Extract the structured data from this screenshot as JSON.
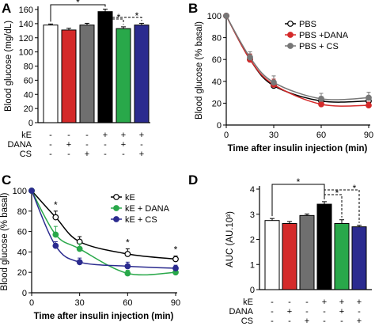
{
  "chart_data": [
    {
      "panel": "A",
      "type": "bar",
      "ylabel": "Blood glucose (mg/dL)",
      "ylim": [
        0,
        160
      ],
      "yticks": [
        0,
        20,
        40,
        60,
        80,
        100,
        120,
        140,
        160
      ],
      "tick_labels": [
        "0",
        "20",
        "40",
        "60",
        "80",
        "100",
        "120",
        "140",
        "160"
      ],
      "series": [
        {
          "name": "",
          "values": [
            138,
            131,
            138,
            157,
            133,
            138
          ],
          "errors": [
            1.5,
            2.5,
            2.5,
            3.5,
            2.5,
            2.5
          ]
        }
      ],
      "bar_colors": [
        "#ffffff",
        "#d42a2a",
        "#6f6f6f",
        "#000000",
        "#29a84a",
        "#2b2b8f"
      ],
      "condition_rows": [
        {
          "label": "kE",
          "marks": [
            "-",
            "-",
            "-",
            "+",
            "+",
            "+"
          ]
        },
        {
          "label": "DANA",
          "marks": [
            "-",
            "+",
            "-",
            "-",
            "+",
            "-"
          ]
        },
        {
          "label": "CS",
          "marks": [
            "-",
            "-",
            "+",
            "-",
            "-",
            "+"
          ]
        }
      ],
      "significance": [
        {
          "from": 0,
          "to": 3,
          "label": "*"
        },
        {
          "from": 3,
          "to": 4,
          "label": "*"
        },
        {
          "from": 3,
          "to": 5,
          "label": "*"
        }
      ]
    },
    {
      "panel": "B",
      "type": "line",
      "xlabel": "Time after insulin injection (min)",
      "ylabel": "Blood glucose (% basal)",
      "x": [
        0,
        15,
        30,
        60,
        90
      ],
      "xlim": [
        0,
        90
      ],
      "ylim": [
        0,
        100
      ],
      "xticks": [
        0,
        30,
        60,
        90
      ],
      "yticks": [
        0,
        20,
        40,
        60,
        80,
        100
      ],
      "xtick_labels": [
        "0",
        "30",
        "60",
        "90"
      ],
      "ytick_labels": [
        "0",
        "20",
        "40",
        "60",
        "80",
        "100"
      ],
      "legend": "top-right",
      "series": [
        {
          "name": "PBS",
          "color": "#000000",
          "values": [
            100,
            60,
            36,
            22,
            22
          ],
          "errors": [
            0,
            5,
            6,
            4,
            4
          ]
        },
        {
          "name": "PBS +DANA",
          "color": "#d42a2a",
          "values": [
            100,
            60,
            37,
            19,
            18
          ],
          "errors": [
            0,
            5,
            5,
            3,
            3
          ]
        },
        {
          "name": "PBS + CS",
          "color": "#777777",
          "values": [
            100,
            62,
            39,
            24,
            25
          ],
          "errors": [
            0,
            5,
            6,
            5,
            5
          ]
        }
      ]
    },
    {
      "panel": "C",
      "type": "line",
      "xlabel": "Time after insulin injection (min)",
      "ylabel": "Blood glucose (% basal)",
      "x": [
        0,
        15,
        30,
        60,
        90
      ],
      "xlim": [
        0,
        90
      ],
      "ylim": [
        0,
        100
      ],
      "xticks": [
        0,
        30,
        60,
        90
      ],
      "yticks": [
        0,
        20,
        40,
        60,
        80,
        100
      ],
      "xtick_labels": [
        "0",
        "30",
        "60",
        "90"
      ],
      "ytick_labels": [
        "0",
        "20",
        "40",
        "60",
        "80",
        "100"
      ],
      "legend": "top-right",
      "series": [
        {
          "name": "kE",
          "color": "#000000",
          "values": [
            100,
            74,
            50,
            38,
            33
          ],
          "errors": [
            0,
            6,
            5,
            5,
            3
          ]
        },
        {
          "name": "kE + DANA",
          "color": "#29a84a",
          "values": [
            100,
            57,
            43,
            19,
            20
          ],
          "errors": [
            0,
            8,
            5,
            3,
            3
          ]
        },
        {
          "name": "kE + CS",
          "color": "#2b2b8f",
          "values": [
            100,
            46,
            30,
            26,
            24
          ],
          "errors": [
            0,
            4,
            4,
            4,
            3
          ]
        }
      ],
      "annotations": [
        {
          "x": 15,
          "label": "*"
        },
        {
          "x": 60,
          "label": "*"
        },
        {
          "x": 90,
          "label": "*"
        }
      ]
    },
    {
      "panel": "D",
      "type": "bar",
      "ylabel": "AUC (AU.10³)",
      "ylim": [
        0,
        4
      ],
      "yticks": [
        0,
        1,
        2,
        3,
        4
      ],
      "tick_labels": [
        "0",
        "1",
        "2",
        "3",
        "4"
      ],
      "series": [
        {
          "name": "",
          "values": [
            2.75,
            2.63,
            2.95,
            3.4,
            2.63,
            2.5
          ],
          "errors": [
            0.08,
            0.08,
            0.06,
            0.1,
            0.15,
            0.06
          ]
        }
      ],
      "bar_colors": [
        "#ffffff",
        "#d42a2a",
        "#6f6f6f",
        "#000000",
        "#29a84a",
        "#2b2b8f"
      ],
      "condition_rows": [
        {
          "label": "kE",
          "marks": [
            "-",
            "-",
            "-",
            "+",
            "+",
            "+"
          ]
        },
        {
          "label": "DANA",
          "marks": [
            "-",
            "+",
            "-",
            "-",
            "+",
            "-"
          ]
        },
        {
          "label": "CS",
          "marks": [
            "-",
            "-",
            "+",
            "-",
            "-",
            "+"
          ]
        }
      ],
      "significance": [
        {
          "from": 0,
          "to": 3,
          "label": "*"
        },
        {
          "from": 3,
          "to": 4,
          "label": "*"
        },
        {
          "from": 3,
          "to": 5,
          "label": "*"
        }
      ]
    }
  ]
}
